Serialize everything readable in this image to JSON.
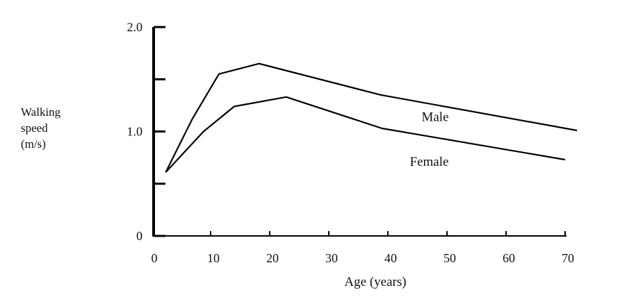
{
  "chart_data": {
    "type": "line",
    "title": "",
    "xlabel": "Age (years)",
    "ylabel_lines": [
      "Walking",
      "speed",
      "(m/s)"
    ],
    "xlim": [
      0,
      70
    ],
    "ylim": [
      0,
      2.0
    ],
    "x_ticks": [
      0,
      10,
      20,
      30,
      40,
      50,
      60,
      70
    ],
    "x_tick_labels": [
      "0",
      "10",
      "20",
      "30",
      "40",
      "50",
      "60",
      "70"
    ],
    "y_ticks": [
      0,
      0.5,
      1.0,
      1.5,
      2.0
    ],
    "y_tick_labels": [
      {
        "value": 0,
        "label": "0"
      },
      {
        "value": 1.0,
        "label": "1.0"
      },
      {
        "value": 2.0,
        "label": "2.0"
      }
    ],
    "grid": false,
    "series": [
      {
        "name": "Male",
        "x": [
          2.4,
          6.9,
          11.4,
          18.2,
          38.8,
          72
        ],
        "y": [
          0.61,
          1.12,
          1.55,
          1.65,
          1.35,
          1.01
        ],
        "label_at": [
          48,
          1.1
        ]
      },
      {
        "name": "Female",
        "x": [
          2.4,
          8.8,
          14,
          22.8,
          39,
          70
        ],
        "y": [
          0.61,
          1.0,
          1.24,
          1.33,
          1.03,
          0.73
        ],
        "label_at": [
          47,
          0.67
        ]
      }
    ]
  }
}
